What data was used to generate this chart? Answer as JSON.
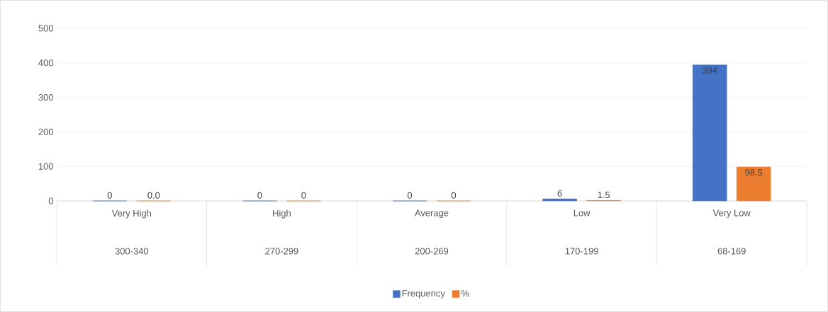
{
  "chart_data": {
    "type": "bar",
    "categories": [
      "Very High",
      "High",
      "Average",
      "Low",
      "Very Low"
    ],
    "series": [
      {
        "name": "Frequency",
        "color": "#4472c4",
        "values": [
          0,
          0,
          0,
          6,
          394
        ],
        "value_labels": [
          "0",
          "0",
          "0",
          "6",
          "394"
        ]
      },
      {
        "name": "%",
        "color": "#ed7d31",
        "values": [
          0,
          0,
          0,
          1.5,
          98.5
        ],
        "value_labels": [
          "0.0",
          "0",
          "0",
          "1.5",
          "98.5"
        ]
      }
    ],
    "ylim": [
      0,
      500
    ],
    "yticks": [
      0,
      100,
      200,
      300,
      400,
      500
    ],
    "grid": "y",
    "legend": "bottom",
    "annotations": [
      "300-340",
      "270-299",
      "200-269",
      "170-199",
      "68-169"
    ]
  }
}
